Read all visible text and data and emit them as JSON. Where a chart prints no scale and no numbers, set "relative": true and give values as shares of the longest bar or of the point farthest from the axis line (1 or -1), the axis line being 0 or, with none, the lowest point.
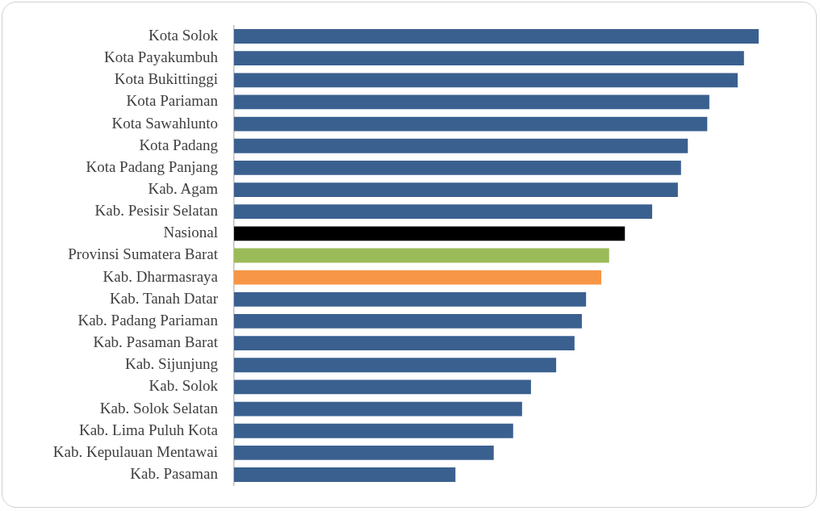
{
  "chart_data": {
    "type": "bar",
    "orientation": "horizontal",
    "relative": true,
    "categories": [
      "Kota Solok",
      "Kota Payakumbuh",
      "Kota Bukittinggi",
      "Kota Pariaman",
      "Kota Sawahlunto",
      "Kota Padang",
      "Kota Padang Panjang",
      "Kab. Agam",
      "Kab. Pesisir Selatan",
      "Nasional",
      "Provinsi Sumatera Barat",
      "Kab. Dharmasraya",
      "Kab. Tanah Datar",
      "Kab. Padang Pariaman",
      "Kab. Pasaman Barat",
      "Kab. Sijunjung",
      "Kab. Solok",
      "Kab. Solok Selatan",
      "Kab. Lima Puluh Kota",
      "Kab. Kepulauan Mentawai",
      "Kab. Pasaman"
    ],
    "values": [
      1,
      0.972,
      0.96,
      0.906,
      0.902,
      0.865,
      0.852,
      0.846,
      0.797,
      0.745,
      0.715,
      0.7,
      0.671,
      0.663,
      0.649,
      0.614,
      0.566,
      0.549,
      0.532,
      0.495,
      0.422
    ],
    "colors": [
      "#3a6090",
      "#3a6090",
      "#3a6090",
      "#3a6090",
      "#3a6090",
      "#3a6090",
      "#3a6090",
      "#3a6090",
      "#3a6090",
      "#000000",
      "#9bbb59",
      "#f79646",
      "#3a6090",
      "#3a6090",
      "#3a6090",
      "#3a6090",
      "#3a6090",
      "#3a6090",
      "#3a6090",
      "#3a6090",
      "#3a6090"
    ]
  }
}
